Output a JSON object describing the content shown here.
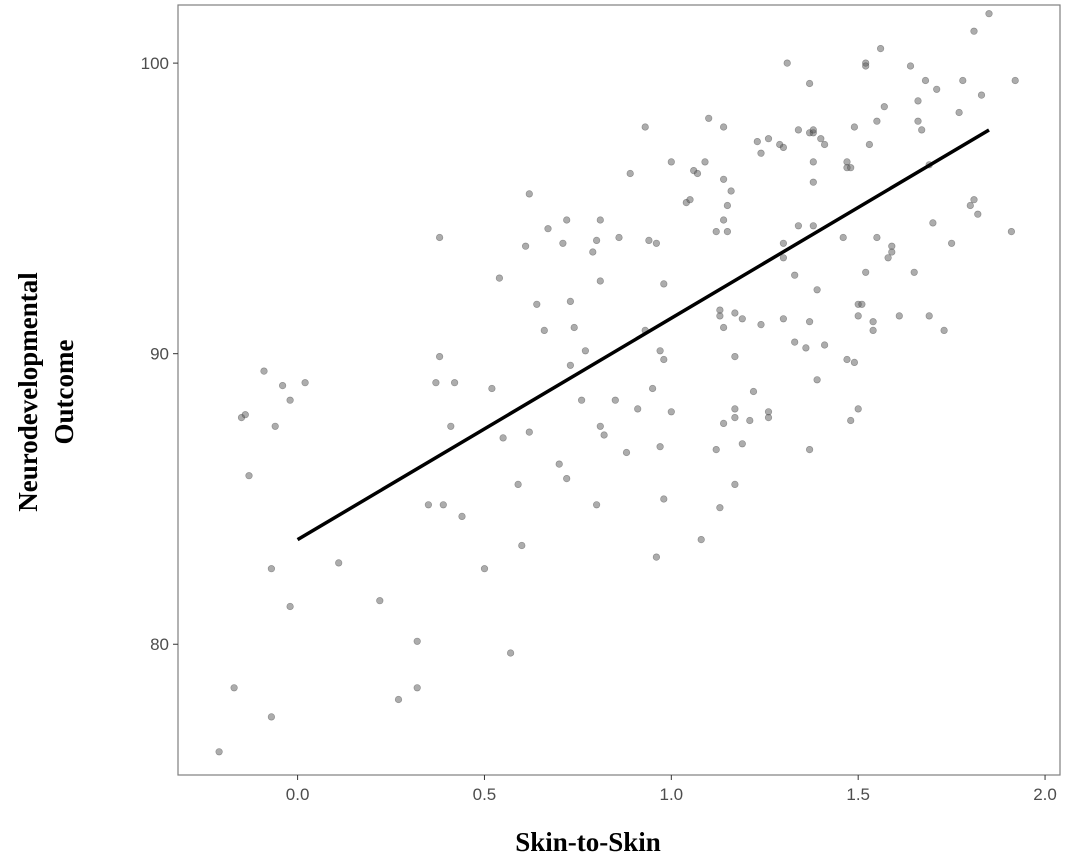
{
  "colors": {
    "background": "#ffffff",
    "panel_border": "#7f7f7f",
    "tick_color": "#333333",
    "tick_label": "#4d4d4d",
    "point_fill": "#5a5a5a",
    "point_stroke": "#3a3a3a",
    "trend_line": "#000000"
  },
  "chart_data": {
    "type": "scatter",
    "xlabel": "Skin-to-Skin",
    "ylabel_lines": [
      "Neurodevelopmental",
      "Outcome"
    ],
    "xlim": [
      -0.32,
      2.04
    ],
    "ylim": [
      75.5,
      102.0
    ],
    "x_ticks": [
      {
        "value": 0.0,
        "label": "0.0"
      },
      {
        "value": 0.5,
        "label": "0.5"
      },
      {
        "value": 1.0,
        "label": "1.0"
      },
      {
        "value": 1.5,
        "label": "1.5"
      },
      {
        "value": 2.0,
        "label": "2.0"
      }
    ],
    "y_ticks": [
      {
        "value": 80,
        "label": "80"
      },
      {
        "value": 90,
        "label": "90"
      },
      {
        "value": 100,
        "label": "100"
      }
    ],
    "grid": false,
    "legend": "none",
    "trend_line": {
      "x": [
        0.0,
        1.85
      ],
      "y": [
        83.6,
        97.7
      ]
    },
    "points": [
      [
        -0.21,
        76.3
      ],
      [
        -0.17,
        78.5
      ],
      [
        -0.15,
        87.8
      ],
      [
        -0.14,
        87.9
      ],
      [
        -0.13,
        85.8
      ],
      [
        -0.09,
        89.4
      ],
      [
        -0.07,
        82.6
      ],
      [
        -0.07,
        77.5
      ],
      [
        -0.06,
        87.5
      ],
      [
        -0.04,
        88.9
      ],
      [
        -0.02,
        81.3
      ],
      [
        -0.02,
        88.4
      ],
      [
        0.02,
        89.0
      ],
      [
        0.11,
        82.8
      ],
      [
        0.22,
        81.5
      ],
      [
        0.27,
        78.1
      ],
      [
        0.32,
        78.5
      ],
      [
        0.32,
        80.1
      ],
      [
        0.35,
        84.8
      ],
      [
        0.37,
        89.0
      ],
      [
        0.38,
        89.9
      ],
      [
        0.38,
        94.0
      ],
      [
        0.39,
        84.8
      ],
      [
        0.41,
        87.5
      ],
      [
        0.42,
        89.0
      ],
      [
        0.44,
        84.4
      ],
      [
        0.5,
        82.6
      ],
      [
        0.52,
        88.8
      ],
      [
        0.54,
        92.6
      ],
      [
        0.55,
        87.1
      ],
      [
        0.57,
        79.7
      ],
      [
        0.59,
        85.5
      ],
      [
        0.6,
        83.4
      ],
      [
        0.61,
        93.7
      ],
      [
        0.62,
        95.5
      ],
      [
        0.62,
        87.3
      ],
      [
        0.64,
        91.7
      ],
      [
        0.66,
        90.8
      ],
      [
        0.67,
        94.3
      ],
      [
        0.7,
        86.2
      ],
      [
        0.71,
        93.8
      ],
      [
        0.72,
        85.7
      ],
      [
        0.72,
        94.6
      ],
      [
        0.73,
        89.6
      ],
      [
        0.73,
        91.8
      ],
      [
        0.74,
        90.9
      ],
      [
        0.76,
        88.4
      ],
      [
        0.77,
        90.1
      ],
      [
        0.79,
        93.5
      ],
      [
        0.8,
        93.9
      ],
      [
        0.8,
        84.8
      ],
      [
        0.81,
        87.5
      ],
      [
        0.81,
        94.6
      ],
      [
        0.81,
        92.5
      ],
      [
        0.82,
        87.2
      ],
      [
        0.85,
        88.4
      ],
      [
        0.86,
        94.0
      ],
      [
        0.88,
        86.6
      ],
      [
        0.89,
        96.2
      ],
      [
        0.91,
        88.1
      ],
      [
        0.93,
        97.8
      ],
      [
        0.93,
        90.8
      ],
      [
        0.94,
        93.9
      ],
      [
        0.95,
        88.8
      ],
      [
        0.96,
        93.8
      ],
      [
        0.96,
        83.0
      ],
      [
        0.97,
        86.8
      ],
      [
        0.97,
        90.1
      ],
      [
        0.98,
        89.8
      ],
      [
        0.98,
        92.4
      ],
      [
        0.98,
        85.0
      ],
      [
        1.0,
        96.6
      ],
      [
        1.0,
        88.0
      ],
      [
        1.04,
        95.2
      ],
      [
        1.05,
        95.3
      ],
      [
        1.06,
        96.3
      ],
      [
        1.07,
        96.2
      ],
      [
        1.08,
        83.6
      ],
      [
        1.09,
        96.6
      ],
      [
        1.1,
        98.1
      ],
      [
        1.12,
        86.7
      ],
      [
        1.12,
        94.2
      ],
      [
        1.13,
        91.3
      ],
      [
        1.13,
        91.5
      ],
      [
        1.13,
        84.7
      ],
      [
        1.14,
        96.0
      ],
      [
        1.14,
        97.8
      ],
      [
        1.14,
        94.6
      ],
      [
        1.14,
        90.9
      ],
      [
        1.14,
        87.6
      ],
      [
        1.15,
        95.1
      ],
      [
        1.15,
        94.2
      ],
      [
        1.16,
        95.6
      ],
      [
        1.17,
        85.5
      ],
      [
        1.17,
        89.9
      ],
      [
        1.17,
        88.1
      ],
      [
        1.17,
        87.8
      ],
      [
        1.17,
        91.4
      ],
      [
        1.19,
        91.2
      ],
      [
        1.19,
        86.9
      ],
      [
        1.21,
        87.7
      ],
      [
        1.22,
        88.7
      ],
      [
        1.23,
        97.3
      ],
      [
        1.24,
        91.0
      ],
      [
        1.24,
        96.9
      ],
      [
        1.26,
        87.8
      ],
      [
        1.26,
        88.0
      ],
      [
        1.26,
        97.4
      ],
      [
        1.29,
        97.2
      ],
      [
        1.3,
        93.3
      ],
      [
        1.3,
        93.8
      ],
      [
        1.3,
        91.2
      ],
      [
        1.3,
        97.1
      ],
      [
        1.31,
        100.0
      ],
      [
        1.33,
        92.7
      ],
      [
        1.33,
        90.4
      ],
      [
        1.34,
        97.7
      ],
      [
        1.34,
        94.4
      ],
      [
        1.36,
        90.2
      ],
      [
        1.37,
        86.7
      ],
      [
        1.37,
        91.1
      ],
      [
        1.37,
        99.3
      ],
      [
        1.37,
        97.6
      ],
      [
        1.38,
        97.6
      ],
      [
        1.38,
        96.6
      ],
      [
        1.38,
        97.7
      ],
      [
        1.38,
        94.4
      ],
      [
        1.38,
        95.9
      ],
      [
        1.39,
        92.2
      ],
      [
        1.39,
        89.1
      ],
      [
        1.4,
        97.4
      ],
      [
        1.41,
        97.2
      ],
      [
        1.41,
        90.3
      ],
      [
        1.46,
        94.0
      ],
      [
        1.47,
        96.6
      ],
      [
        1.47,
        96.4
      ],
      [
        1.47,
        89.8
      ],
      [
        1.48,
        96.4
      ],
      [
        1.48,
        87.7
      ],
      [
        1.49,
        89.7
      ],
      [
        1.49,
        97.8
      ],
      [
        1.5,
        88.1
      ],
      [
        1.5,
        91.7
      ],
      [
        1.5,
        91.3
      ],
      [
        1.51,
        91.7
      ],
      [
        1.52,
        100.0
      ],
      [
        1.52,
        99.9
      ],
      [
        1.52,
        92.8
      ],
      [
        1.53,
        97.2
      ],
      [
        1.54,
        91.1
      ],
      [
        1.54,
        90.8
      ],
      [
        1.55,
        94.0
      ],
      [
        1.55,
        98.0
      ],
      [
        1.56,
        100.5
      ],
      [
        1.57,
        98.5
      ],
      [
        1.58,
        93.3
      ],
      [
        1.59,
        93.5
      ],
      [
        1.59,
        93.7
      ],
      [
        1.61,
        91.3
      ],
      [
        1.64,
        99.9
      ],
      [
        1.65,
        92.8
      ],
      [
        1.66,
        98.0
      ],
      [
        1.66,
        98.7
      ],
      [
        1.67,
        97.7
      ],
      [
        1.68,
        99.4
      ],
      [
        1.69,
        91.3
      ],
      [
        1.69,
        96.5
      ],
      [
        1.7,
        94.5
      ],
      [
        1.71,
        99.1
      ],
      [
        1.73,
        90.8
      ],
      [
        1.75,
        93.8
      ],
      [
        1.77,
        98.3
      ],
      [
        1.78,
        99.4
      ],
      [
        1.8,
        95.1
      ],
      [
        1.81,
        101.1
      ],
      [
        1.81,
        95.3
      ],
      [
        1.82,
        94.8
      ],
      [
        1.83,
        98.9
      ],
      [
        1.85,
        101.7
      ],
      [
        1.91,
        94.2
      ],
      [
        1.92,
        99.4
      ]
    ]
  }
}
